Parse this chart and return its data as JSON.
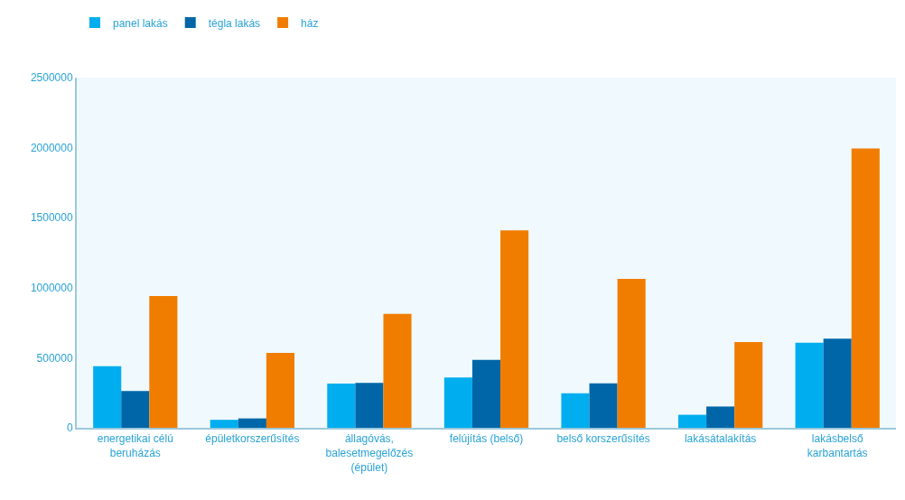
{
  "chart_data": {
    "type": "bar",
    "categories": [
      "energetikai célú beruházás",
      "épületkorszerűsítés",
      "állagóvás, balesetmegelőzés (épület)",
      "felújítás (belső)",
      "belső korszerűsítés",
      "lakásátalakítás",
      "lakásbelső karbantartás"
    ],
    "series": [
      {
        "name": "panel lakás",
        "color": "#00aeef",
        "values": [
          440000,
          57000,
          315000,
          360000,
          247000,
          93000,
          607000
        ]
      },
      {
        "name": "tégla lakás",
        "color": "#0066a8",
        "values": [
          263000,
          67000,
          321000,
          485000,
          318000,
          152000,
          637000
        ]
      },
      {
        "name": "ház",
        "color": "#f07d00",
        "values": [
          940000,
          535000,
          813000,
          1409000,
          1063000,
          612000,
          1994000
        ]
      }
    ],
    "ylim": [
      0,
      2500000
    ],
    "yticks": [
      0,
      500000,
      1000000,
      1500000,
      2000000,
      2500000
    ],
    "grid": false,
    "legend": "top left"
  }
}
